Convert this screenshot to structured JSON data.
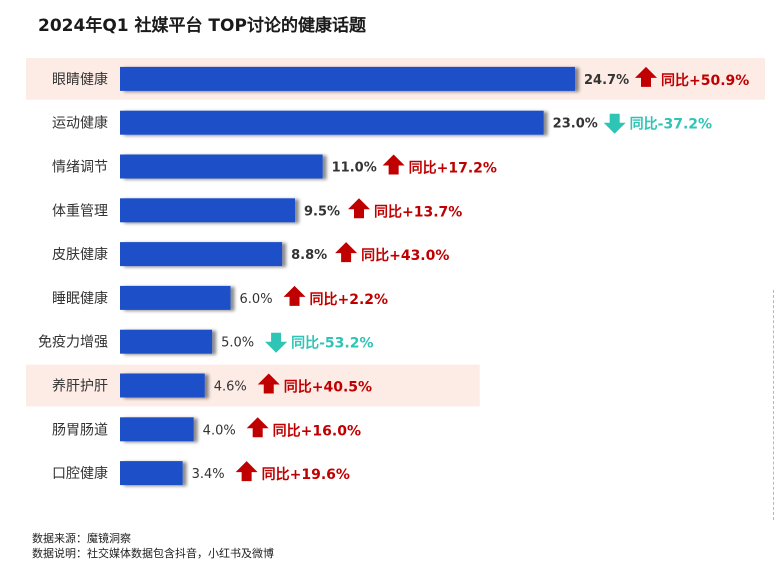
{
  "title": "2024年Q1 社媒平台 TOP讨论的健康话题",
  "footer": {
    "source": "数据来源：魔镜洞察",
    "note": "数据说明：社交媒体数据包含抖音，小红书及微博"
  },
  "colors": {
    "bar": "#1e4fc8",
    "up": "#c00000",
    "down": "#2ec4b6",
    "highlight": "#fdece6",
    "label": "#333333"
  },
  "chart_data": {
    "type": "bar",
    "orientation": "horizontal",
    "title": "2024年Q1 社媒平台 TOP讨论的健康话题",
    "categories": [
      "眼睛健康",
      "运动健康",
      "情绪调节",
      "体重管理",
      "皮肤健康",
      "睡眠健康",
      "免疫力增强",
      "养肝护肝",
      "肠胃肠道",
      "口腔健康"
    ],
    "values": [
      24.7,
      23.0,
      11.0,
      9.5,
      8.8,
      6.0,
      5.0,
      4.6,
      4.0,
      3.4
    ],
    "value_labels": [
      "24.7%",
      "23.0%",
      "11.0%",
      "9.5%",
      "8.8%",
      "6.0%",
      "5.0%",
      "4.6%",
      "4.0%",
      "3.4%"
    ],
    "yoy_labels": [
      "同比+50.9%",
      "同比-37.2%",
      "同比+17.2%",
      "同比+13.7%",
      "同比+43.0%",
      "同比+2.2%",
      "同比-53.2%",
      "同比+40.5%",
      "同比+16.0%",
      "同比+19.6%"
    ],
    "yoy_direction": [
      "up",
      "down",
      "up",
      "up",
      "up",
      "up",
      "down",
      "up",
      "up",
      "up"
    ],
    "highlighted": [
      "眼睛健康",
      "养肝护肝"
    ],
    "xlim": [
      0,
      24.7
    ],
    "unit": "%",
    "xlabel": "",
    "ylabel": ""
  }
}
